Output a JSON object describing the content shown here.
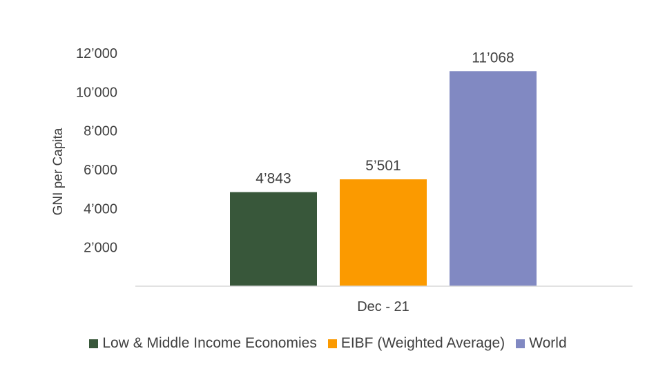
{
  "chart_data": {
    "type": "bar",
    "ylabel": "GNI per Capita",
    "xlabel": "",
    "categories": [
      "Dec - 21"
    ],
    "ylim": [
      0,
      12000
    ],
    "yticks": [
      2000,
      4000,
      6000,
      8000,
      10000,
      12000
    ],
    "ytick_labels": [
      "2’000",
      "4’000",
      "6’000",
      "8’000",
      "10’000",
      "12’000"
    ],
    "grid": false,
    "legend_position": "bottom",
    "series": [
      {
        "name": "Low & Middle Income Economies",
        "values": [
          4843
        ],
        "label": "4’843",
        "color": "#38573a"
      },
      {
        "name": "EIBF (Weighted Average)",
        "values": [
          5501
        ],
        "label": "5’501",
        "color": "#fb9a00"
      },
      {
        "name": "World",
        "values": [
          11068
        ],
        "label": "11’068",
        "color": "#8189c2"
      }
    ]
  }
}
